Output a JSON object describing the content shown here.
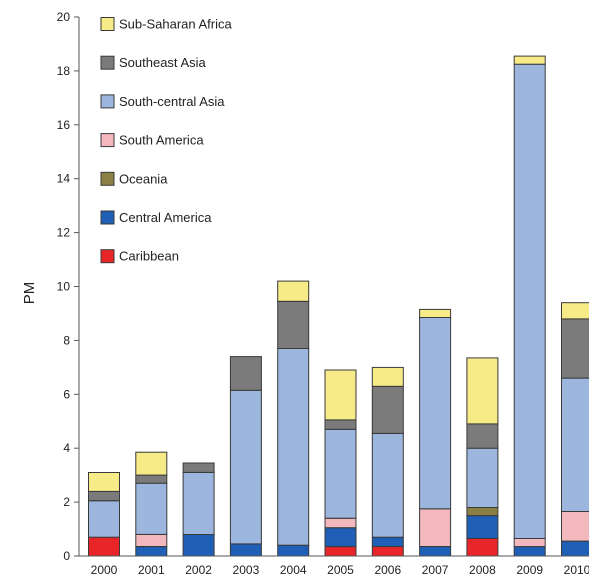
{
  "chart_data": {
    "type": "bar",
    "stacked": true,
    "title": "",
    "xlabel": "",
    "ylabel": "PM",
    "ylim": [
      0,
      20
    ],
    "yticks": [
      0,
      2,
      4,
      6,
      8,
      10,
      12,
      14,
      16,
      18,
      20
    ],
    "grid": false,
    "legend_position": "top-left",
    "categories": [
      "2000",
      "2001",
      "2002",
      "2003",
      "2004",
      "2005",
      "2006",
      "2007",
      "2008",
      "2009",
      "2010"
    ],
    "series": [
      {
        "name": "Caribbean",
        "color": "#e8262a",
        "values": [
          0.7,
          0.0,
          0.0,
          0.0,
          0.0,
          0.35,
          0.35,
          0.0,
          0.65,
          0.0,
          0.0
        ]
      },
      {
        "name": "Central America",
        "color": "#1f5fb5",
        "values": [
          0.0,
          0.35,
          0.8,
          0.45,
          0.4,
          0.7,
          0.35,
          0.35,
          0.85,
          0.35,
          0.55
        ]
      },
      {
        "name": "Oceania",
        "color": "#8a8046",
        "values": [
          0.0,
          0.0,
          0.0,
          0.0,
          0.0,
          0.0,
          0.0,
          0.0,
          0.3,
          0.0,
          0.0
        ]
      },
      {
        "name": "South America",
        "color": "#f3b8be",
        "values": [
          0.0,
          0.45,
          0.0,
          0.0,
          0.0,
          0.35,
          0.0,
          1.4,
          0.0,
          0.3,
          1.1
        ]
      },
      {
        "name": "South-central Asia",
        "color": "#9cb6dd",
        "values": [
          1.35,
          1.9,
          2.3,
          5.7,
          7.3,
          3.3,
          3.85,
          7.1,
          2.2,
          17.6,
          4.95
        ]
      },
      {
        "name": "Southeast Asia",
        "color": "#7b7b7b",
        "values": [
          0.35,
          0.3,
          0.35,
          1.25,
          1.75,
          0.35,
          1.75,
          0.0,
          0.9,
          0.0,
          2.2
        ]
      },
      {
        "name": "Sub-Saharan Africa",
        "color": "#f7eb88",
        "values": [
          0.7,
          0.85,
          0.0,
          0.0,
          0.75,
          1.85,
          0.7,
          0.3,
          2.45,
          0.3,
          0.6
        ]
      }
    ]
  }
}
